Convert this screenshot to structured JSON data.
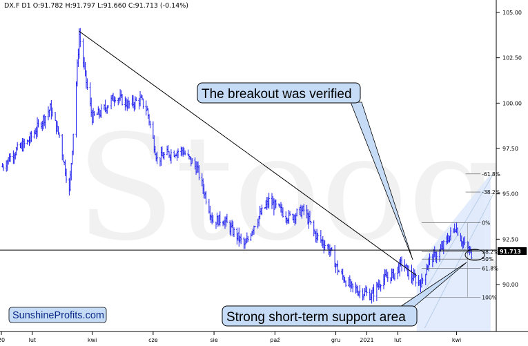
{
  "header": {
    "text": "DX.F  D1  O:91.782  H:91.797  L:91.660  C:91.713  (-0.14%)"
  },
  "watermark": "Stooq",
  "brand": "SunshineProfits.com",
  "annotations": {
    "breakout": "The breakout was verified",
    "support": "Strong short-term support area"
  },
  "current_price": "91.713",
  "colors": {
    "bars": "#1a1aee",
    "callout_fill": "#c6dcf6",
    "channel_fill": "#dde9fb",
    "price_tag": "#000000"
  },
  "chart_data": {
    "type": "ohlc",
    "title": "",
    "xlabel": "",
    "ylabel": "",
    "ylim": [
      88.0,
      105.6
    ],
    "y_ticks": [
      {
        "v": 105.0,
        "label": "105.00"
      },
      {
        "v": 102.5,
        "label": "102.50"
      },
      {
        "v": 100.0,
        "label": "100.00"
      },
      {
        "v": 97.5,
        "label": "97.50"
      },
      {
        "v": 95.0,
        "label": "95.00"
      },
      {
        "v": 92.5,
        "label": "92.50"
      },
      {
        "v": 90.0,
        "label": "90.00"
      }
    ],
    "x_ticks": [
      {
        "date": "2020-01-01",
        "label": "20"
      },
      {
        "date": "2020-02-01",
        "label": "lut"
      },
      {
        "date": "2020-04-01",
        "label": "kwi"
      },
      {
        "date": "2020-06-01",
        "label": "cze"
      },
      {
        "date": "2020-08-01",
        "label": "sie"
      },
      {
        "date": "2020-10-01",
        "label": "paź"
      },
      {
        "date": "2020-12-01",
        "label": "gru"
      },
      {
        "date": "2021-01-01",
        "label": "2021"
      },
      {
        "date": "2021-02-01",
        "label": "lut"
      },
      {
        "date": "2021-04-01",
        "label": "kwi"
      }
    ],
    "series": [
      {
        "name": "DX.F",
        "close_path": [
          [
            "2020-01-02",
            96.5
          ],
          [
            "2020-01-14",
            97.3
          ],
          [
            "2020-01-28",
            97.9
          ],
          [
            "2020-02-19",
            99.7
          ],
          [
            "2020-02-28",
            98.2
          ],
          [
            "2020-03-09",
            95.1
          ],
          [
            "2020-03-13",
            98.4
          ],
          [
            "2020-03-19",
            103.8
          ],
          [
            "2020-03-25",
            101.5
          ],
          [
            "2020-04-01",
            99.2
          ],
          [
            "2020-04-10",
            99.5
          ],
          [
            "2020-04-24",
            100.4
          ],
          [
            "2020-05-08",
            99.9
          ],
          [
            "2020-05-19",
            100.2
          ],
          [
            "2020-05-26",
            99.6
          ],
          [
            "2020-06-05",
            96.9
          ],
          [
            "2020-06-15",
            97.2
          ],
          [
            "2020-06-30",
            97.4
          ],
          [
            "2020-07-15",
            96.4
          ],
          [
            "2020-07-31",
            93.5
          ],
          [
            "2020-08-10",
            93.6
          ],
          [
            "2020-08-31",
            92.2
          ],
          [
            "2020-09-01",
            92.1
          ],
          [
            "2020-09-10",
            93.3
          ],
          [
            "2020-09-25",
            94.6
          ],
          [
            "2020-10-15",
            93.7
          ],
          [
            "2020-10-30",
            94.1
          ],
          [
            "2020-11-10",
            92.8
          ],
          [
            "2020-11-25",
            91.9
          ],
          [
            "2020-12-04",
            90.7
          ],
          [
            "2020-12-17",
            89.8
          ],
          [
            "2021-01-06",
            89.4
          ],
          [
            "2021-01-15",
            90.2
          ],
          [
            "2021-01-29",
            90.6
          ],
          [
            "2021-02-05",
            91.2
          ],
          [
            "2021-02-15",
            90.4
          ],
          [
            "2021-02-25",
            90.1
          ],
          [
            "2021-03-04",
            91.3
          ],
          [
            "2021-03-15",
            91.8
          ],
          [
            "2021-03-31",
            93.2
          ],
          [
            "2021-04-08",
            92.2
          ],
          [
            "2021-04-16",
            91.7
          ]
        ]
      }
    ],
    "high_point": {
      "date": "2020-03-19",
      "value": 103.96
    },
    "horizontal_support": 91.9,
    "trendline": {
      "from": [
        "2020-03-19",
        103.96
      ],
      "to": [
        "2021-02-18",
        90.6
      ]
    },
    "fibonacci": {
      "levels": [
        {
          "label": "-61.8%",
          "value": 96.1
        },
        {
          "label": "-38.2%",
          "value": 95.1
        },
        {
          "label": "0%",
          "value": 93.4
        },
        {
          "label": "38.2%",
          "value": 91.8
        },
        {
          "label": "50%",
          "value": 91.4
        },
        {
          "label": "61.8%",
          "value": 90.9
        },
        {
          "label": "100%",
          "value": 89.3
        }
      ]
    }
  }
}
